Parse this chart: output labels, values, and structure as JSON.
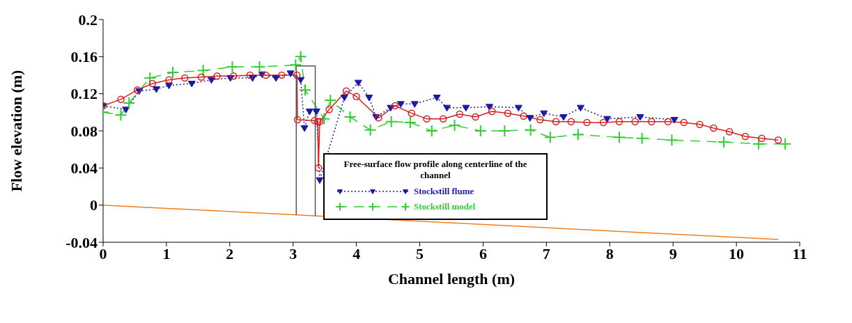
{
  "chart_data": {
    "type": "line",
    "xlabel": "Channel length (m)",
    "ylabel": "Flow elevation (m)",
    "legend_title": "Free-surface flow profile along centerline of the channel",
    "xlim": [
      0,
      11
    ],
    "xticks": [
      0,
      1,
      2,
      3,
      4,
      5,
      6,
      7,
      8,
      9,
      10,
      11
    ],
    "ylim": [
      -0.04,
      0.2
    ],
    "yticks": [
      -0.04,
      0,
      0.04,
      0.08,
      0.12,
      0.16,
      0.2
    ],
    "legend": "center",
    "series": [
      {
        "name": "Stockstill flume",
        "color": "#1a1aa8",
        "marker": "triangle",
        "line_style": "dotted",
        "x": [
          0,
          0.36,
          0.57,
          0.84,
          1.04,
          1.4,
          1.71,
          2.01,
          2.36,
          2.51,
          2.73,
          2.96,
          3.12,
          3.18,
          3.26,
          3.37,
          3.42,
          3.81,
          4.03,
          4.2,
          4.31,
          4.54,
          4.7,
          4.92,
          5.27,
          5.43,
          5.73,
          6.1,
          6.56,
          6.74,
          6.96,
          7.27,
          7.54,
          7.96,
          8.48,
          9.02
        ],
        "values": [
          0.107,
          0.103,
          0.123,
          0.125,
          0.129,
          0.131,
          0.135,
          0.137,
          0.137,
          0.141,
          0.137,
          0.142,
          0.135,
          0.083,
          0.101,
          0.101,
          0.027,
          0.116,
          0.132,
          0.116,
          0.095,
          0.105,
          0.109,
          0.109,
          0.116,
          0.105,
          0.105,
          0.106,
          0.105,
          0.094,
          0.099,
          0.095,
          0.105,
          0.093,
          0.095,
          0.092
        ]
      },
      {
        "name": "Stockstill model",
        "color": "#33cc33",
        "marker": "cross",
        "line_style": "dashed",
        "x": [
          0,
          0.28,
          0.41,
          0.74,
          1.1,
          1.58,
          2.04,
          2.47,
          3.04,
          3.12,
          3.19,
          3.49,
          3.59,
          3.9,
          4.22,
          4.55,
          4.85,
          5.19,
          5.55,
          5.96,
          6.34,
          6.75,
          7.06,
          7.5,
          8.15,
          8.51,
          8.98,
          9.8,
          10.35,
          10.77
        ],
        "values": [
          0.1,
          0.097,
          0.11,
          0.137,
          0.143,
          0.145,
          0.149,
          0.149,
          0.151,
          0.16,
          0.124,
          0.093,
          0.113,
          0.095,
          0.081,
          0.09,
          0.089,
          0.08,
          0.086,
          0.08,
          0.08,
          0.081,
          0.073,
          0.076,
          0.073,
          0.072,
          0.07,
          0.068,
          0.066,
          0.066
        ]
      },
      {
        "color": "#d42020",
        "marker": "circle",
        "line_style": "solid",
        "x": [
          0,
          0.28,
          0.54,
          0.78,
          1.04,
          1.29,
          1.55,
          1.8,
          2.06,
          2.32,
          2.57,
          2.82,
          3.06,
          3.07,
          3.34,
          3.39,
          3.4,
          3.42,
          3.57,
          3.84,
          4.0,
          4.35,
          4.61,
          4.87,
          5.11,
          5.37,
          5.63,
          5.88,
          6.14,
          6.39,
          6.64,
          6.9,
          7.15,
          7.39,
          7.64,
          7.9,
          8.15,
          8.4,
          8.66,
          8.92,
          9.17,
          9.42,
          9.64,
          9.89,
          10.14,
          10.4,
          10.66
        ],
        "values": [
          0.107,
          0.114,
          0.124,
          0.131,
          0.135,
          0.137,
          0.138,
          0.139,
          0.139,
          0.14,
          0.14,
          0.14,
          0.14,
          0.092,
          0.091,
          0.09,
          0.04,
          0.09,
          0.103,
          0.123,
          0.117,
          0.094,
          0.107,
          0.099,
          0.093,
          0.093,
          0.098,
          0.095,
          0.101,
          0.099,
          0.096,
          0.092,
          0.09,
          0.09,
          0.089,
          0.089,
          0.09,
          0.09,
          0.09,
          0.09,
          0.089,
          0.087,
          0.083,
          0.079,
          0.074,
          0.072,
          0.07
        ]
      },
      {
        "color": "#ee8020",
        "marker": "none",
        "line_style": "solid",
        "x": [
          0,
          10.66
        ],
        "values": [
          0,
          -0.037
        ]
      },
      {
        "color": "#555555",
        "marker": "none",
        "line_style": "solid",
        "x": [
          3.05,
          3.05,
          3.35,
          3.35
        ],
        "values": [
          -0.0105,
          0.15,
          0.15,
          -0.0116
        ]
      }
    ]
  }
}
